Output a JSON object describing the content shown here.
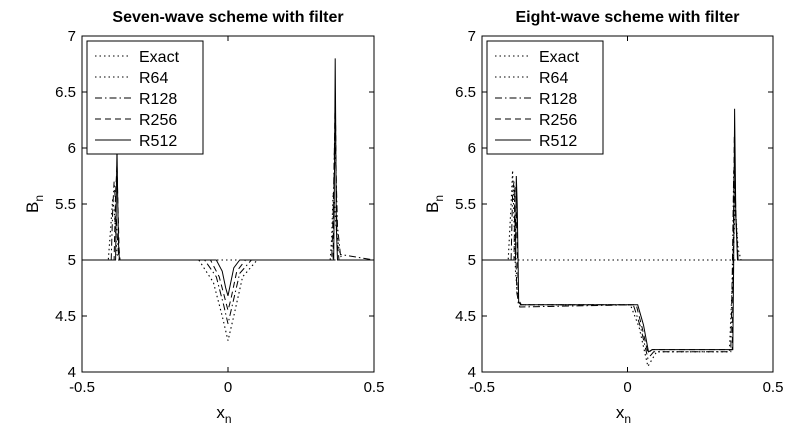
{
  "chart_data": [
    {
      "type": "line",
      "title": "Seven-wave scheme with filter",
      "xlabel": "x",
      "xlabel_sub": "n",
      "ylabel": "B",
      "ylabel_sub": "n",
      "xlim": [
        -0.5,
        0.5
      ],
      "ylim": [
        4,
        7
      ],
      "xticks": [
        "-0.5",
        "0",
        "0.5"
      ],
      "yticks": [
        "4",
        "4.5",
        "5",
        "5.5",
        "6",
        "6.5",
        "7"
      ],
      "grid": false,
      "legend_position": "top-left",
      "series": [
        {
          "name": "Exact",
          "style": "dotted",
          "x": [
            -0.5,
            0.5
          ],
          "y": [
            5,
            5
          ]
        },
        {
          "name": "R64",
          "style": "dotted",
          "x": [
            -0.5,
            -0.41,
            -0.4,
            -0.395,
            -0.39,
            -0.385,
            -0.38,
            -0.37,
            -0.1,
            -0.05,
            -0.02,
            0.0,
            0.02,
            0.05,
            0.1,
            0.35,
            0.355,
            0.36,
            0.365,
            0.37,
            0.38,
            0.39,
            0.5
          ],
          "y": [
            5,
            5,
            5.35,
            5.55,
            5.45,
            5.25,
            5.05,
            5,
            5,
            4.8,
            4.5,
            4.28,
            4.5,
            4.85,
            5,
            5,
            5.2,
            5.6,
            5.5,
            5.3,
            5.1,
            5,
            5
          ]
        },
        {
          "name": "R128",
          "style": "dashdot",
          "x": [
            -0.5,
            -0.4,
            -0.395,
            -0.39,
            -0.385,
            -0.38,
            -0.375,
            -0.37,
            -0.08,
            -0.04,
            -0.015,
            0.0,
            0.015,
            0.04,
            0.08,
            0.355,
            0.36,
            0.365,
            0.37,
            0.375,
            0.385,
            0.5
          ],
          "y": [
            5,
            5,
            5.45,
            5.7,
            5.5,
            5.25,
            5.05,
            5,
            5,
            4.85,
            4.6,
            4.43,
            4.6,
            4.88,
            5,
            5,
            5.4,
            6.1,
            5.8,
            5.3,
            5.05,
            5
          ]
        },
        {
          "name": "R256",
          "style": "dashed",
          "x": [
            -0.5,
            -0.39,
            -0.385,
            -0.38,
            -0.377,
            -0.373,
            -0.37,
            -0.06,
            -0.03,
            -0.01,
            0.0,
            0.01,
            0.03,
            0.06,
            0.36,
            0.363,
            0.367,
            0.37,
            0.373,
            0.38,
            0.5
          ],
          "y": [
            5,
            5,
            5.6,
            5.85,
            5.5,
            5.1,
            5,
            5,
            4.85,
            4.65,
            4.55,
            4.65,
            4.9,
            5,
            5,
            5.7,
            6.5,
            5.9,
            5.2,
            5,
            5
          ]
        },
        {
          "name": "R512",
          "style": "solid",
          "x": [
            -0.5,
            -0.385,
            -0.382,
            -0.38,
            -0.378,
            -0.375,
            -0.372,
            -0.04,
            -0.02,
            -0.008,
            0.0,
            0.008,
            0.02,
            0.04,
            0.362,
            0.365,
            0.367,
            0.369,
            0.371,
            0.375,
            0.5
          ],
          "y": [
            5,
            5,
            5.7,
            6.0,
            5.6,
            5.15,
            5,
            5,
            4.9,
            4.75,
            4.68,
            4.78,
            4.93,
            5,
            5,
            5.9,
            6.8,
            6.2,
            5.3,
            5,
            5
          ]
        }
      ]
    },
    {
      "type": "line",
      "title": "Eight-wave scheme with filter",
      "xlabel": "x",
      "xlabel_sub": "n",
      "ylabel": "B",
      "ylabel_sub": "n",
      "xlim": [
        -0.5,
        0.5
      ],
      "ylim": [
        4,
        7
      ],
      "xticks": [
        "-0.5",
        "0",
        "0.5"
      ],
      "yticks": [
        "4",
        "4.5",
        "5",
        "5.5",
        "6",
        "6.5",
        "7"
      ],
      "grid": false,
      "legend_position": "top-left",
      "series": [
        {
          "name": "Exact",
          "style": "dotted",
          "x": [
            -0.5,
            0.5
          ],
          "y": [
            5,
            5
          ]
        },
        {
          "name": "R64",
          "style": "dotted",
          "x": [
            -0.5,
            -0.41,
            -0.4,
            -0.395,
            -0.385,
            -0.375,
            -0.36,
            0.01,
            0.04,
            0.07,
            0.1,
            0.35,
            0.36,
            0.37,
            0.38,
            0.39,
            0.5
          ],
          "y": [
            5,
            5,
            5.5,
            5.8,
            4.9,
            4.6,
            4.6,
            4.6,
            4.4,
            4.05,
            4.18,
            4.18,
            4.8,
            5.5,
            5.1,
            5,
            5
          ]
        },
        {
          "name": "R128",
          "style": "dashdot",
          "x": [
            -0.5,
            -0.4,
            -0.395,
            -0.39,
            -0.38,
            -0.37,
            0.02,
            0.045,
            0.07,
            0.09,
            0.355,
            0.36,
            0.365,
            0.37,
            0.38,
            0.5
          ],
          "y": [
            5,
            5,
            5.6,
            5.7,
            4.7,
            4.58,
            4.6,
            4.4,
            4.12,
            4.18,
            4.18,
            4.9,
            5.8,
            5.5,
            5,
            5
          ]
        },
        {
          "name": "R256",
          "style": "dashed",
          "x": [
            -0.5,
            -0.39,
            -0.387,
            -0.383,
            -0.375,
            -0.365,
            0.03,
            0.05,
            0.07,
            0.085,
            0.36,
            0.363,
            0.367,
            0.372,
            0.38,
            0.5
          ],
          "y": [
            5,
            5,
            5.65,
            5.6,
            4.65,
            4.6,
            4.6,
            4.4,
            4.17,
            4.2,
            4.2,
            5.0,
            6.1,
            5.4,
            5,
            5
          ]
        },
        {
          "name": "R512",
          "style": "solid",
          "x": [
            -0.5,
            -0.385,
            -0.382,
            -0.379,
            -0.374,
            -0.365,
            0.035,
            0.055,
            0.072,
            0.085,
            0.362,
            0.365,
            0.368,
            0.372,
            0.378,
            0.5
          ],
          "y": [
            5,
            5,
            5.75,
            5.5,
            4.62,
            4.6,
            4.6,
            4.42,
            4.18,
            4.2,
            4.2,
            5.0,
            6.35,
            5.4,
            5,
            5
          ]
        }
      ]
    }
  ]
}
